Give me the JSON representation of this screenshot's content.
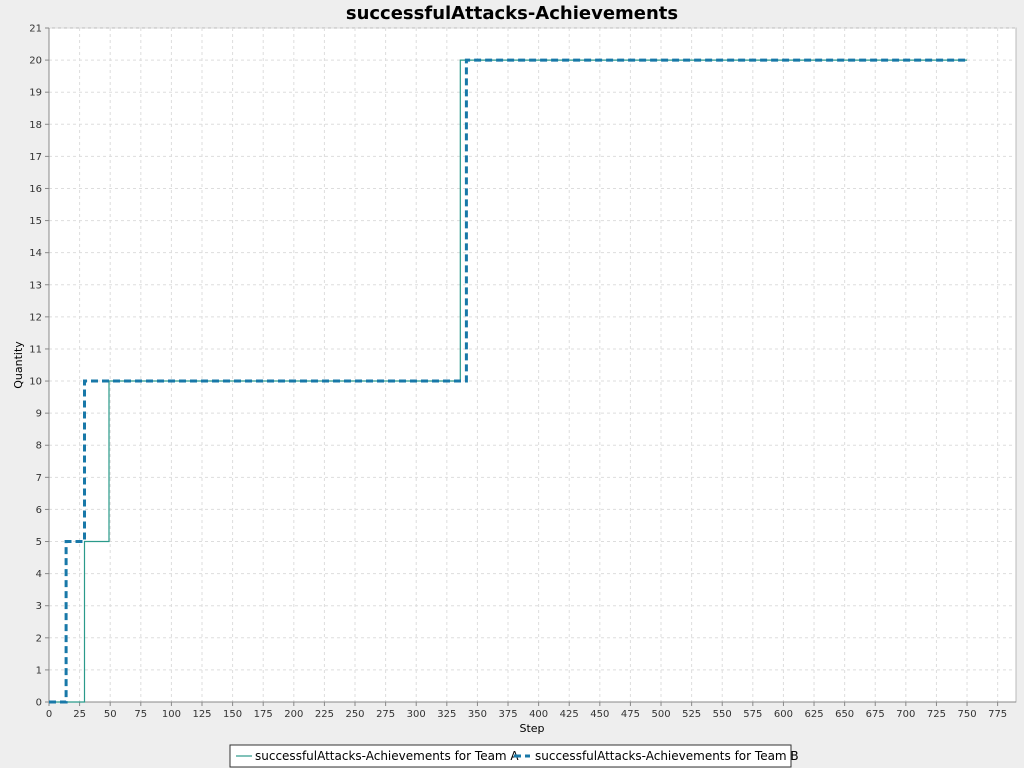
{
  "chart_data": {
    "type": "line",
    "step": true,
    "title": "successfulAttacks-Achievements",
    "xlabel": "Step",
    "ylabel": "Quantity",
    "xlim": [
      0,
      790
    ],
    "ylim": [
      0,
      21
    ],
    "x_ticks": [
      0,
      25,
      50,
      75,
      100,
      125,
      150,
      175,
      200,
      225,
      250,
      275,
      300,
      325,
      350,
      375,
      400,
      425,
      450,
      475,
      500,
      525,
      550,
      575,
      600,
      625,
      650,
      675,
      700,
      725,
      750,
      775
    ],
    "y_ticks": [
      0,
      1,
      2,
      3,
      4,
      5,
      6,
      7,
      8,
      9,
      10,
      11,
      12,
      13,
      14,
      15,
      16,
      17,
      18,
      19,
      20,
      21
    ],
    "grid": true,
    "legend_position": "bottom",
    "series": [
      {
        "name": "successfulAttacks-Achievements for Team A",
        "color": "#2a9a8a",
        "style": "solid",
        "x": [
          0,
          29,
          29,
          49,
          49,
          336,
          336,
          750
        ],
        "y": [
          0,
          0,
          5,
          5,
          10,
          10,
          20,
          20
        ]
      },
      {
        "name": "successfulAttacks-Achievements for Team B",
        "color": "#1878a8",
        "style": "dashed",
        "x": [
          0,
          14,
          14,
          29,
          29,
          341,
          341,
          750
        ],
        "y": [
          0,
          0,
          5,
          5,
          10,
          10,
          20,
          20
        ]
      }
    ]
  }
}
